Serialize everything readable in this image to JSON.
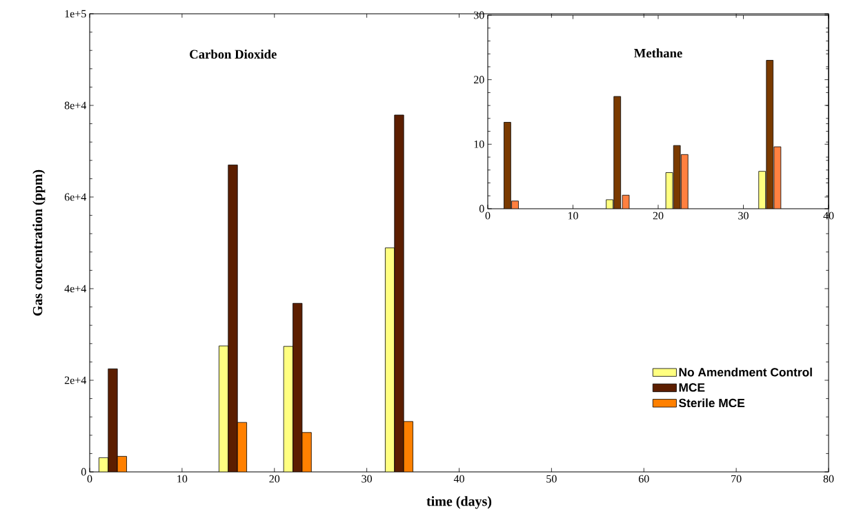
{
  "chart_data": [
    {
      "type": "bar",
      "title": "Carbon Dioxide",
      "xlabel": "time (days)",
      "ylabel": "Gas concentration (ppm)",
      "xlim": [
        0,
        80
      ],
      "xticks": [
        0,
        10,
        20,
        30,
        40,
        50,
        60,
        70,
        80
      ],
      "ylim": [
        0,
        100000
      ],
      "yticks": [
        0,
        {
          "value": 20000,
          "label": "2e+4"
        },
        {
          "value": 40000,
          "label": "4e+4"
        },
        {
          "value": 60000,
          "label": "6e+4"
        },
        {
          "value": 80000,
          "label": "8e+4"
        },
        {
          "value": 100000,
          "label": "1e+5"
        }
      ],
      "legend": "bottom right",
      "series": [
        {
          "name": "No Amendment Control",
          "color": "#ffff80",
          "x": [
            1.5,
            14.5,
            21.5,
            32.5
          ],
          "values": [
            3100,
            27500,
            27400,
            48900
          ]
        },
        {
          "name": "MCE",
          "color": "#5c1e00",
          "x": [
            2.5,
            15.5,
            22.5,
            33.5
          ],
          "values": [
            22500,
            67000,
            36800,
            77900
          ]
        },
        {
          "name": "Sterile MCE",
          "color": "#ff8000",
          "x": [
            3.5,
            16.5,
            23.5,
            34.5
          ],
          "values": [
            3400,
            10800,
            8600,
            11000
          ]
        }
      ]
    },
    {
      "type": "bar",
      "title": "Methane",
      "xlim": [
        0,
        40
      ],
      "xticks": [
        0,
        10,
        20,
        30,
        40
      ],
      "ylim": [
        0,
        30
      ],
      "yticks": [
        0,
        10,
        20,
        30
      ],
      "series": [
        {
          "color": "#ffff80",
          "x": [
            null,
            14.3,
            21.3,
            32.2
          ],
          "values": [
            null,
            1.4,
            5.6,
            5.8
          ]
        },
        {
          "color": "#7a3a00",
          "x": [
            2.3,
            15.2,
            22.2,
            33.1
          ],
          "values": [
            13.4,
            17.4,
            9.8,
            23.0
          ]
        },
        {
          "color": "#ff8040",
          "x": [
            3.2,
            16.2,
            23.1,
            34.0
          ],
          "values": [
            1.2,
            2.1,
            8.4,
            9.6
          ]
        }
      ]
    }
  ]
}
